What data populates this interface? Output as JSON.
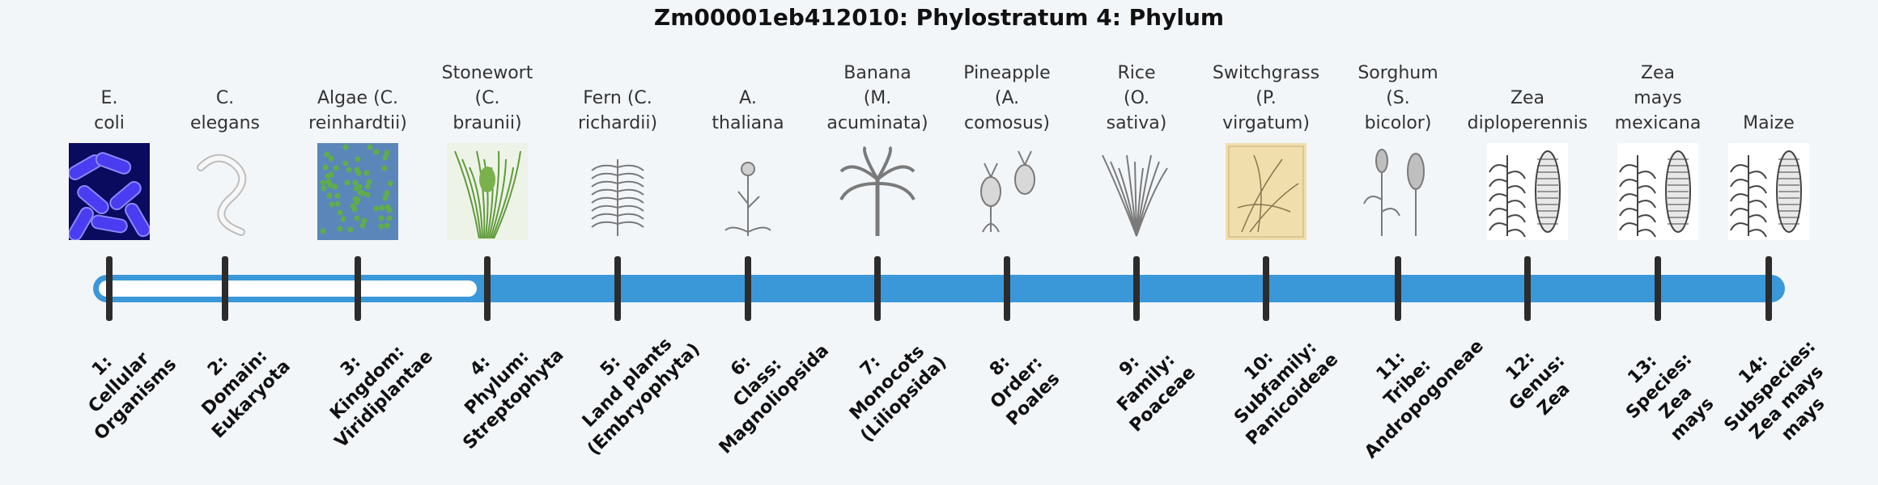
{
  "title": "Zm00001eb412010: Phylostratum 4: Phylum",
  "colors": {
    "accent": "#3a98d9",
    "tick": "#2c2c2c",
    "unfilled": "#ffffff"
  },
  "timeline": {
    "filled_from_step": 4,
    "total_steps": 14
  },
  "organisms": [
    {
      "lines": [
        "E.",
        "coli"
      ],
      "icon": "bacteria-image"
    },
    {
      "lines": [
        "C.",
        "elegans"
      ],
      "icon": "worm-image"
    },
    {
      "lines": [
        "Algae (C.",
        "reinhardtii)"
      ],
      "icon": "algae-image"
    },
    {
      "lines": [
        "Stonewort",
        "(C.",
        "braunii)"
      ],
      "icon": "stonewort-image"
    },
    {
      "lines": [
        "Fern (C.",
        "richardii)"
      ],
      "icon": "fern-image"
    },
    {
      "lines": [
        "A.",
        "thaliana"
      ],
      "icon": "arabidopsis-image"
    },
    {
      "lines": [
        "Banana",
        "(M.",
        "acuminata)"
      ],
      "icon": "banana-plant-image"
    },
    {
      "lines": [
        "Pineapple",
        "(A.",
        "comosus)"
      ],
      "icon": "pineapple-image"
    },
    {
      "lines": [
        "Rice",
        "(O.",
        "sativa)"
      ],
      "icon": "rice-image"
    },
    {
      "lines": [
        "Switchgrass",
        "(P.",
        "virgatum)"
      ],
      "icon": "switchgrass-image"
    },
    {
      "lines": [
        "Sorghum",
        "(S.",
        "bicolor)"
      ],
      "icon": "sorghum-image"
    },
    {
      "lines": [
        "Zea",
        "diploperennis"
      ],
      "icon": "zea-diploperennis-image"
    },
    {
      "lines": [
        "Zea",
        "mays",
        "mexicana"
      ],
      "icon": "zea-mexicana-image"
    },
    {
      "lines": [
        "Maize"
      ],
      "icon": "maize-image"
    }
  ],
  "ranks": [
    {
      "lines": [
        "1:",
        "Cellular",
        "Organisms"
      ]
    },
    {
      "lines": [
        "2:",
        "Domain:",
        "Eukaryota"
      ]
    },
    {
      "lines": [
        "3:",
        "Kingdom:",
        "Viridiplantae"
      ]
    },
    {
      "lines": [
        "4:",
        "Phylum:",
        "Streptophyta"
      ]
    },
    {
      "lines": [
        "5:",
        "Land plants",
        "(Embryophyta)"
      ]
    },
    {
      "lines": [
        "6:",
        "Class:",
        "Magnoliopsida"
      ]
    },
    {
      "lines": [
        "7:",
        "Monocots",
        "(Liliopsida)"
      ]
    },
    {
      "lines": [
        "8:",
        "Order:",
        "Poales"
      ]
    },
    {
      "lines": [
        "9:",
        "Family:",
        "Poaceae"
      ]
    },
    {
      "lines": [
        "10:",
        "Subfamily:",
        "Panicoideae"
      ]
    },
    {
      "lines": [
        "11:",
        "Tribe:",
        "Andropogoneae"
      ]
    },
    {
      "lines": [
        "12:",
        "Genus:",
        "Zea"
      ]
    },
    {
      "lines": [
        "13:",
        "Species:",
        "Zea",
        "mays"
      ]
    },
    {
      "lines": [
        "14:",
        "Subspecies:",
        "Zea mays",
        "mays"
      ]
    }
  ]
}
